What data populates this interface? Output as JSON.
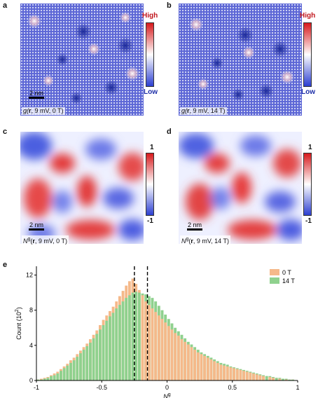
{
  "panels": {
    "a": {
      "label": "a",
      "caption_pre": "g(",
      "caption_bold": "r",
      "caption_post": ", 9 mV, 0 T)",
      "scale": "2 nm"
    },
    "b": {
      "label": "b",
      "caption_pre": "g(",
      "caption_bold": "r",
      "caption_post": ", 9 mV, 14 T)"
    },
    "c": {
      "label": "c",
      "caption_pre": "N",
      "caption_sup": "g",
      "caption_mid": "(",
      "caption_bold": "r",
      "caption_post": ", 9 mV, 0 T)",
      "scale": "2 nm"
    },
    "d": {
      "label": "d",
      "caption_pre": "N",
      "caption_sup": "g",
      "caption_mid": "(",
      "caption_bold": "r",
      "caption_post": ", 9 mV, 14 T)",
      "scale": "2 nm"
    },
    "e": {
      "label": "e"
    }
  },
  "colorbars": {
    "top": {
      "high": "High",
      "low": "Low"
    },
    "bottom": {
      "max": "1",
      "min": "-1"
    }
  },
  "colors": {
    "red": "#d7191c",
    "blue": "#2c3fd1",
    "orange": "#f5b98a",
    "green": "#8fd18e"
  },
  "chart_data": {
    "type": "bar",
    "xlabel": "N",
    "xlabel_sup": "g",
    "ylabel": "Count (10",
    "ylabel_sup": "2",
    "ylabel_post": ")",
    "xlim": [
      -1,
      1
    ],
    "ylim": [
      0,
      13
    ],
    "xticks": [
      "-1",
      "-0.5",
      "0",
      "0.5",
      "1"
    ],
    "yticks": [
      "0",
      "4",
      "8",
      "12"
    ],
    "dashed_lines": [
      -0.25,
      -0.15
    ],
    "bin_width": 0.025,
    "x": [
      -0.9875,
      -0.9625,
      -0.9375,
      -0.9125,
      -0.8875,
      -0.8625,
      -0.8375,
      -0.8125,
      -0.7875,
      -0.7625,
      -0.7375,
      -0.7125,
      -0.6875,
      -0.6625,
      -0.6375,
      -0.6125,
      -0.5875,
      -0.5625,
      -0.5375,
      -0.5125,
      -0.4875,
      -0.4625,
      -0.4375,
      -0.4125,
      -0.3875,
      -0.3625,
      -0.3375,
      -0.3125,
      -0.2875,
      -0.2625,
      -0.2375,
      -0.2125,
      -0.1875,
      -0.1625,
      -0.1375,
      -0.1125,
      -0.0875,
      -0.0625,
      -0.0375,
      -0.0125,
      0.0125,
      0.0375,
      0.0625,
      0.0875,
      0.1125,
      0.1375,
      0.1625,
      0.1875,
      0.2125,
      0.2375,
      0.2625,
      0.2875,
      0.3125,
      0.3375,
      0.3625,
      0.3875,
      0.4125,
      0.4375,
      0.4625,
      0.4875,
      0.5125,
      0.5375,
      0.5625,
      0.5875,
      0.6125,
      0.6375,
      0.6625,
      0.6875,
      0.7125,
      0.7375,
      0.7625,
      0.7875,
      0.8125,
      0.8375,
      0.8625,
      0.8875,
      0.9125,
      0.9375,
      0.9625,
      0.9875
    ],
    "series": [
      {
        "name": "0 T",
        "color": "#f5b98a",
        "values": [
          0.1,
          0.2,
          0.3,
          0.4,
          0.6,
          0.8,
          1.0,
          1.3,
          1.6,
          1.9,
          2.3,
          2.6,
          3.0,
          3.4,
          3.8,
          4.2,
          4.7,
          5.2,
          5.7,
          6.3,
          6.9,
          7.4,
          7.9,
          8.4,
          9.0,
          9.6,
          10.2,
          10.8,
          11.3,
          11.6,
          11.0,
          10.3,
          9.7,
          9.0,
          8.6,
          8.2,
          7.8,
          7.4,
          7.0,
          6.6,
          6.2,
          5.8,
          5.4,
          5.1,
          4.7,
          4.4,
          4.1,
          3.8,
          3.5,
          3.2,
          3.0,
          2.8,
          2.6,
          2.4,
          2.2,
          2.0,
          1.8,
          1.7,
          1.6,
          1.5,
          1.4,
          1.3,
          1.2,
          1.1,
          1.0,
          0.9,
          0.8,
          0.7,
          0.6,
          0.5,
          0.5,
          0.4,
          0.3,
          0.3,
          0.2,
          0.2,
          0.1,
          0.1,
          0.1,
          0.0
        ]
      },
      {
        "name": "14 T",
        "color": "#8fd18e",
        "values": [
          0.1,
          0.1,
          0.2,
          0.3,
          0.5,
          0.6,
          0.8,
          1.1,
          1.4,
          1.7,
          2.0,
          2.3,
          2.7,
          3.1,
          3.5,
          3.9,
          4.3,
          4.8,
          5.3,
          5.8,
          6.3,
          6.8,
          7.3,
          7.7,
          8.2,
          8.6,
          9.0,
          9.4,
          9.7,
          10.0,
          10.1,
          10.0,
          9.9,
          9.8,
          9.6,
          9.4,
          9.0,
          8.5,
          8.0,
          7.5,
          7.0,
          6.5,
          6.0,
          5.6,
          5.2,
          4.8,
          4.4,
          4.1,
          3.8,
          3.5,
          3.2,
          3.0,
          2.8,
          2.6,
          2.4,
          2.2,
          2.0,
          1.9,
          1.8,
          1.6,
          1.5,
          1.4,
          1.3,
          1.2,
          1.1,
          1.0,
          0.9,
          0.8,
          0.7,
          0.6,
          0.5,
          0.5,
          0.4,
          0.3,
          0.3,
          0.2,
          0.2,
          0.1,
          0.1,
          0.0
        ]
      }
    ],
    "legend_position": "top-right"
  }
}
